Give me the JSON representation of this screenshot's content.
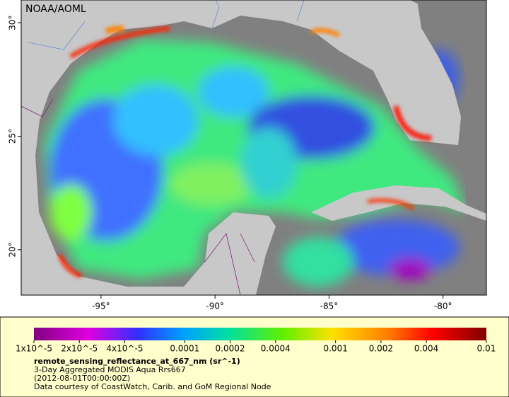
{
  "map": {
    "credit": "NOAA/AOML",
    "xlim": [
      -98.5,
      -78.1
    ],
    "ylim": [
      18,
      31
    ],
    "lon_ticks": [
      {
        "value": -95,
        "label": "-95°"
      },
      {
        "value": -90,
        "label": "-90°"
      },
      {
        "value": -85,
        "label": "-85°"
      },
      {
        "value": -80,
        "label": "-80°"
      }
    ],
    "lat_ticks": [
      {
        "value": 20,
        "label": "20°"
      },
      {
        "value": 25,
        "label": "25°"
      },
      {
        "value": 30,
        "label": "30°"
      }
    ]
  },
  "colorbar": {
    "scale": "log",
    "lim": [
      1e-05,
      0.01
    ],
    "ticks": [
      {
        "value": 1e-05,
        "label": "1x10^-5"
      },
      {
        "value": 2e-05,
        "label": "2x10^-5"
      },
      {
        "value": 4e-05,
        "label": "4x10^-5"
      },
      0.0001,
      0.0002,
      0.0004,
      0.001,
      0.002,
      0.004,
      0.01
    ],
    "variable": "remote_sensing_reflectance_at_667_nm (sr^-1)",
    "description": "3-Day Aggregated MODIS Aqua Rrs667",
    "date": "(2012-08-01T00:00:00Z)",
    "courtesy": "Data courtesy of CoastWatch, Carib. and GoM Regional Node"
  }
}
